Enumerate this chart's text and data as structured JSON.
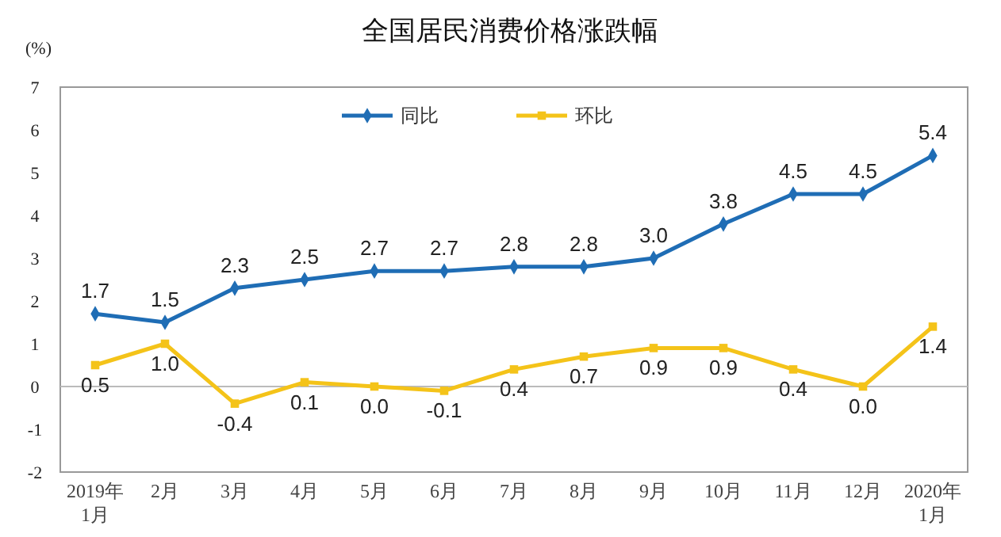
{
  "chart_data": {
    "type": "line",
    "title": "全国居民消费价格涨跌幅",
    "ylabel": "(%)",
    "categories": [
      "2019年\n1月",
      "2月",
      "3月",
      "4月",
      "5月",
      "6月",
      "7月",
      "8月",
      "9月",
      "10月",
      "11月",
      "12月",
      "2020年\n1月"
    ],
    "series": [
      {
        "name": "同比",
        "color": "#1f6db5",
        "marker": "diamond",
        "values": [
          1.7,
          1.5,
          2.3,
          2.5,
          2.7,
          2.7,
          2.8,
          2.8,
          3.0,
          3.8,
          4.5,
          4.5,
          5.4
        ],
        "value_labels": [
          "1.7",
          "1.5",
          "2.3",
          "2.5",
          "2.7",
          "2.7",
          "2.8",
          "2.8",
          "3.0",
          "3.8",
          "4.5",
          "4.5",
          "5.4"
        ]
      },
      {
        "name": "环比",
        "color": "#f4c319",
        "marker": "square",
        "values": [
          0.5,
          1.0,
          -0.4,
          0.1,
          0.0,
          -0.1,
          0.4,
          0.7,
          0.9,
          0.9,
          0.4,
          0.0,
          1.4
        ],
        "value_labels": [
          "0.5",
          "1.0",
          "-0.4",
          "0.1",
          "0.0",
          "-0.1",
          "0.4",
          "0.7",
          "0.9",
          "0.9",
          "0.4",
          "0.0",
          "1.4"
        ]
      }
    ],
    "ylim": [
      -2,
      7
    ],
    "yticks": [
      -2,
      -1,
      0,
      1,
      2,
      3,
      4,
      5,
      6,
      7
    ],
    "legend": "top",
    "line_style": "solid"
  }
}
